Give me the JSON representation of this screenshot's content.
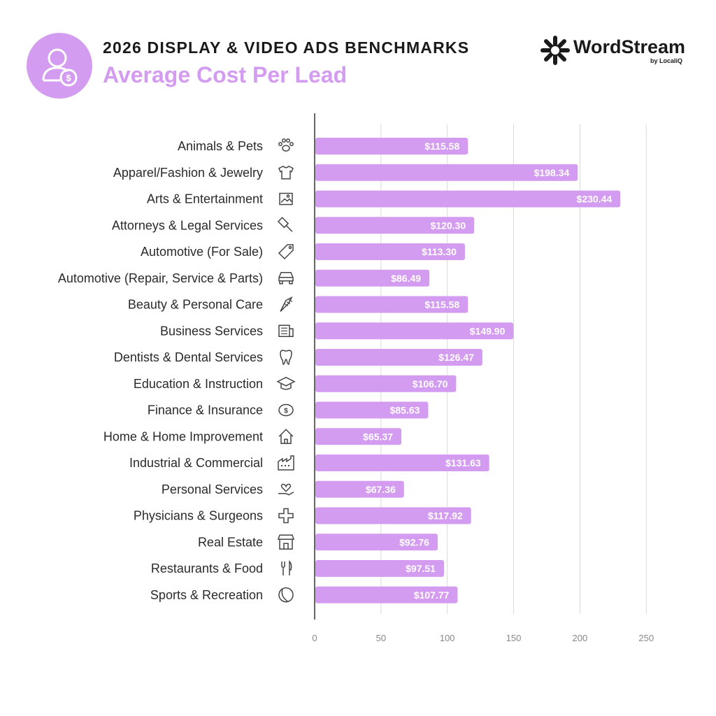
{
  "header": {
    "title": "2026 DISPLAY & VIDEO ADS BENCHMARKS",
    "subtitle": "Average Cost Per Lead",
    "icon": "user-dollar-icon"
  },
  "brand": {
    "name": "WordStream",
    "byline": "by LocaliQ",
    "logo_icon": "wordstream-star-logo"
  },
  "colors": {
    "bar": "#d49cf0",
    "accent": "#d49cf0",
    "grid": "#d9d9d9",
    "axis": "#333333",
    "value_text": "#ffffff"
  },
  "chart_data": {
    "type": "bar",
    "orientation": "horizontal",
    "title": "Average Cost Per Lead",
    "xlim": [
      0,
      250
    ],
    "xticks": [
      0,
      50,
      100,
      150,
      200,
      250
    ],
    "grid": true,
    "xlabel": "",
    "ylabel": "",
    "categories": [
      "Animals & Pets",
      "Apparel/Fashion & Jewelry",
      "Arts & Entertainment",
      "Attorneys & Legal Services",
      "Automotive (For Sale)",
      "Automotive (Repair, Service & Parts)",
      "Beauty & Personal Care",
      "Business Services",
      "Dentists & Dental Services",
      "Education & Instruction",
      "Finance & Insurance",
      "Home & Home Improvement",
      "Industrial & Commercial",
      "Personal Services",
      "Physicians & Surgeons",
      "Real Estate",
      "Restaurants & Food",
      "Sports & Recreation"
    ],
    "values": [
      115.58,
      198.34,
      230.44,
      120.3,
      113.3,
      86.49,
      115.58,
      149.9,
      126.47,
      106.7,
      85.63,
      65.37,
      131.63,
      67.36,
      117.92,
      92.76,
      97.51,
      107.77
    ],
    "value_labels": [
      "$115.58",
      "$198.34",
      "$230.44",
      "$120.30",
      "$113.30",
      "$86.49",
      "$115.58",
      "$149.90",
      "$126.47",
      "$106.70",
      "$85.63",
      "$65.37",
      "$131.63",
      "$67.36",
      "$117.92",
      "$92.76",
      "$97.51",
      "$107.77"
    ],
    "icons": [
      "paw-icon",
      "tshirt-icon",
      "picture-icon",
      "gavel-icon",
      "price-tag-icon",
      "car-icon",
      "comb-icon",
      "newspaper-icon",
      "tooth-icon",
      "graduation-cap-icon",
      "piggy-bank-icon",
      "house-icon",
      "factory-icon",
      "hand-heart-icon",
      "medical-cross-icon",
      "storefront-icon",
      "fork-knife-icon",
      "ball-icon"
    ]
  }
}
